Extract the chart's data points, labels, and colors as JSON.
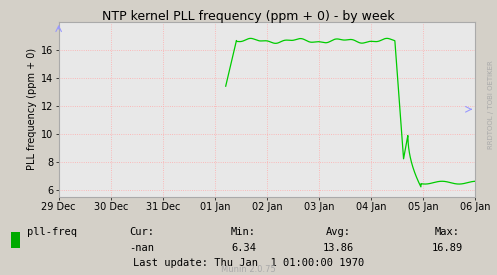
{
  "title": "NTP kernel PLL frequency (ppm + 0) - by week",
  "ylabel": "PLL frequency (ppm + 0)",
  "bg_color": "#d4d0c8",
  "plot_bg_color": "#e8e8e8",
  "line_color": "#00cc00",
  "text_color": "#000000",
  "legend_label": "pll-freq",
  "legend_color": "#00aa00",
  "cur_label": "Cur:",
  "cur_value": "-nan",
  "min_label": "Min:",
  "min_value": "6.34",
  "avg_label": "Avg:",
  "avg_value": "13.86",
  "max_label": "Max:",
  "max_value": "16.89",
  "last_update": "Last update: Thu Jan  1 01:00:00 1970",
  "munin_label": "Munin 2.0.75",
  "ylim": [
    5.5,
    18.0
  ],
  "yticks": [
    6,
    8,
    10,
    12,
    14,
    16
  ],
  "xtick_labels": [
    "29 Dec",
    "30 Dec",
    "31 Dec",
    "01 Jan",
    "02 Jan",
    "03 Jan",
    "04 Jan",
    "05 Jan",
    "06 Jan"
  ],
  "xtick_positions": [
    0,
    86400,
    172800,
    259200,
    345600,
    432000,
    518400,
    604800,
    691200
  ],
  "rrdtool_label": "RRDTOOL / TOBI OETIKER"
}
